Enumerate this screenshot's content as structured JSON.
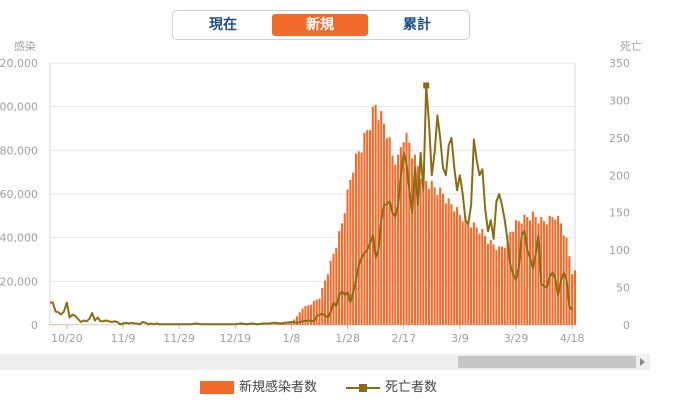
{
  "tabs": [
    {
      "label": "現在",
      "active": false
    },
    {
      "label": "新規",
      "active": true
    },
    {
      "label": "累計",
      "active": false
    }
  ],
  "colors": {
    "bars": "#f26b2a",
    "line": "#8a6d12",
    "grid": "#e6e6e6",
    "axis_text": "#a0a0a0",
    "tab_text": "#1f4e8c"
  },
  "chart_data": {
    "type": "bar",
    "left_axis": {
      "title": "感染",
      "ticks": [
        "0",
        "20,000",
        "40,000",
        "60,000",
        "80,000",
        "100,000",
        "120,000"
      ],
      "ylim": [
        0,
        120000
      ]
    },
    "right_axis": {
      "title": "死亡",
      "ticks": [
        "0",
        "50",
        "100",
        "150",
        "200",
        "250",
        "300",
        "350"
      ],
      "ylim": [
        0,
        350
      ]
    },
    "x_ticks": [
      {
        "label": "10/20",
        "day": 6
      },
      {
        "label": "11/9",
        "day": 26
      },
      {
        "label": "11/29",
        "day": 46
      },
      {
        "label": "12/19",
        "day": 66
      },
      {
        "label": "1/8",
        "day": 86
      },
      {
        "label": "1/28",
        "day": 106
      },
      {
        "label": "2/17",
        "day": 126
      },
      {
        "label": "3/9",
        "day": 146
      },
      {
        "label": "3/29",
        "day": 166
      },
      {
        "label": "4/18",
        "day": 186
      }
    ],
    "day_range": [
      0,
      187
    ],
    "series": [
      {
        "name": "新規感染者数",
        "kind": "bar",
        "axis": "left",
        "points": [
          [
            0,
            300
          ],
          [
            10,
            200
          ],
          [
            20,
            150
          ],
          [
            30,
            100
          ],
          [
            40,
            100
          ],
          [
            50,
            100
          ],
          [
            60,
            100
          ],
          [
            70,
            150
          ],
          [
            78,
            200
          ],
          [
            82,
            500
          ],
          [
            86,
            1500
          ],
          [
            88,
            4000
          ],
          [
            90,
            8000
          ],
          [
            93,
            10000
          ],
          [
            96,
            13000
          ],
          [
            99,
            25000
          ],
          [
            102,
            38000
          ],
          [
            104,
            48000
          ],
          [
            106,
            62000
          ],
          [
            108,
            75000
          ],
          [
            110,
            82000
          ],
          [
            112,
            88000
          ],
          [
            114,
            96000
          ],
          [
            116,
            104000
          ],
          [
            118,
            98000
          ],
          [
            120,
            92000
          ],
          [
            122,
            80000
          ],
          [
            124,
            78000
          ],
          [
            126,
            90000
          ],
          [
            128,
            86000
          ],
          [
            130,
            78000
          ],
          [
            132,
            72000
          ],
          [
            134,
            68000
          ],
          [
            136,
            66000
          ],
          [
            138,
            64000
          ],
          [
            140,
            62000
          ],
          [
            142,
            58000
          ],
          [
            144,
            56000
          ],
          [
            146,
            52000
          ],
          [
            148,
            50000
          ],
          [
            150,
            48000
          ],
          [
            152,
            46000
          ],
          [
            154,
            44000
          ],
          [
            156,
            40000
          ],
          [
            158,
            38000
          ],
          [
            160,
            36000
          ],
          [
            162,
            38000
          ],
          [
            164,
            44000
          ],
          [
            166,
            48000
          ],
          [
            168,
            50000
          ],
          [
            170,
            51000
          ],
          [
            172,
            52000
          ],
          [
            174,
            50000
          ],
          [
            176,
            49000
          ],
          [
            178,
            50000
          ],
          [
            180,
            52000
          ],
          [
            182,
            48000
          ],
          [
            184,
            40000
          ],
          [
            186,
            25000
          ]
        ]
      },
      {
        "name": "死亡者数",
        "kind": "line",
        "axis": "right",
        "points": [
          [
            0,
            30
          ],
          [
            1,
            30
          ],
          [
            2,
            18
          ],
          [
            3,
            17
          ],
          [
            4,
            14
          ],
          [
            5,
            18
          ],
          [
            6,
            30
          ],
          [
            7,
            10
          ],
          [
            8,
            14
          ],
          [
            9,
            12
          ],
          [
            10,
            8
          ],
          [
            11,
            4
          ],
          [
            12,
            6
          ],
          [
            13,
            5
          ],
          [
            14,
            8
          ],
          [
            15,
            16
          ],
          [
            16,
            6
          ],
          [
            17,
            10
          ],
          [
            18,
            5
          ],
          [
            19,
            5
          ],
          [
            20,
            6
          ],
          [
            21,
            5
          ],
          [
            22,
            4
          ],
          [
            23,
            5
          ],
          [
            24,
            4
          ],
          [
            25,
            1
          ],
          [
            26,
            2
          ],
          [
            27,
            3
          ],
          [
            28,
            2
          ],
          [
            29,
            3
          ],
          [
            30,
            2
          ],
          [
            31,
            2
          ],
          [
            32,
            1
          ],
          [
            33,
            4
          ],
          [
            34,
            3
          ],
          [
            35,
            1
          ],
          [
            36,
            2
          ],
          [
            37,
            1
          ],
          [
            38,
            2
          ],
          [
            39,
            1
          ],
          [
            40,
            1
          ],
          [
            42,
            1
          ],
          [
            44,
            1
          ],
          [
            46,
            1
          ],
          [
            48,
            1
          ],
          [
            50,
            1
          ],
          [
            52,
            2
          ],
          [
            54,
            1
          ],
          [
            56,
            1
          ],
          [
            58,
            1
          ],
          [
            60,
            1
          ],
          [
            62,
            1
          ],
          [
            64,
            1
          ],
          [
            66,
            1
          ],
          [
            68,
            2
          ],
          [
            70,
            1
          ],
          [
            72,
            2
          ],
          [
            74,
            1
          ],
          [
            76,
            2
          ],
          [
            78,
            2
          ],
          [
            80,
            3
          ],
          [
            82,
            2
          ],
          [
            84,
            3
          ],
          [
            86,
            4
          ],
          [
            88,
            3
          ],
          [
            90,
            5
          ],
          [
            92,
            6
          ],
          [
            94,
            5
          ],
          [
            95,
            12
          ],
          [
            97,
            15
          ],
          [
            99,
            10
          ],
          [
            100,
            18
          ],
          [
            101,
            30
          ],
          [
            102,
            25
          ],
          [
            103,
            40
          ],
          [
            104,
            45
          ],
          [
            105,
            40
          ],
          [
            106,
            44
          ],
          [
            107,
            30
          ],
          [
            108,
            44
          ],
          [
            109,
            60
          ],
          [
            110,
            80
          ],
          [
            111,
            90
          ],
          [
            112,
            96
          ],
          [
            113,
            100
          ],
          [
            114,
            110
          ],
          [
            115,
            120
          ],
          [
            116,
            90
          ],
          [
            117,
            100
          ],
          [
            118,
            140
          ],
          [
            119,
            160
          ],
          [
            120,
            162
          ],
          [
            121,
            165
          ],
          [
            122,
            150
          ],
          [
            123,
            145
          ],
          [
            124,
            160
          ],
          [
            125,
            200
          ],
          [
            126,
            230
          ],
          [
            127,
            215
          ],
          [
            128,
            180
          ],
          [
            129,
            150
          ],
          [
            130,
            210
          ],
          [
            131,
            160
          ],
          [
            132,
            230
          ],
          [
            133,
            180
          ],
          [
            134,
            320
          ],
          [
            135,
            270
          ],
          [
            136,
            200
          ],
          [
            137,
            230
          ],
          [
            138,
            280
          ],
          [
            139,
            250
          ],
          [
            140,
            210
          ],
          [
            141,
            200
          ],
          [
            142,
            240
          ],
          [
            143,
            250
          ],
          [
            144,
            210
          ],
          [
            145,
            180
          ],
          [
            146,
            200
          ],
          [
            147,
            175
          ],
          [
            148,
            140
          ],
          [
            149,
            135
          ],
          [
            150,
            160
          ],
          [
            151,
            248
          ],
          [
            152,
            220
          ],
          [
            153,
            200
          ],
          [
            154,
            208
          ],
          [
            155,
            155
          ],
          [
            156,
            125
          ],
          [
            157,
            140
          ],
          [
            158,
            115
          ],
          [
            159,
            165
          ],
          [
            160,
            175
          ],
          [
            161,
            160
          ],
          [
            162,
            140
          ],
          [
            163,
            112
          ],
          [
            164,
            80
          ],
          [
            165,
            68
          ],
          [
            166,
            60
          ],
          [
            167,
            78
          ],
          [
            168,
            120
          ],
          [
            169,
            126
          ],
          [
            170,
            100
          ],
          [
            171,
            90
          ],
          [
            172,
            75
          ],
          [
            173,
            95
          ],
          [
            174,
            120
          ],
          [
            175,
            55
          ],
          [
            176,
            52
          ],
          [
            177,
            50
          ],
          [
            178,
            65
          ],
          [
            179,
            70
          ],
          [
            180,
            62
          ],
          [
            181,
            40
          ],
          [
            182,
            60
          ],
          [
            183,
            70
          ],
          [
            184,
            60
          ],
          [
            185,
            25
          ],
          [
            186,
            20
          ]
        ]
      }
    ],
    "grid": true,
    "legend_position": "bottom-center"
  },
  "legend": [
    {
      "label": "新規感染者数"
    },
    {
      "label": "死亡者数"
    }
  ]
}
